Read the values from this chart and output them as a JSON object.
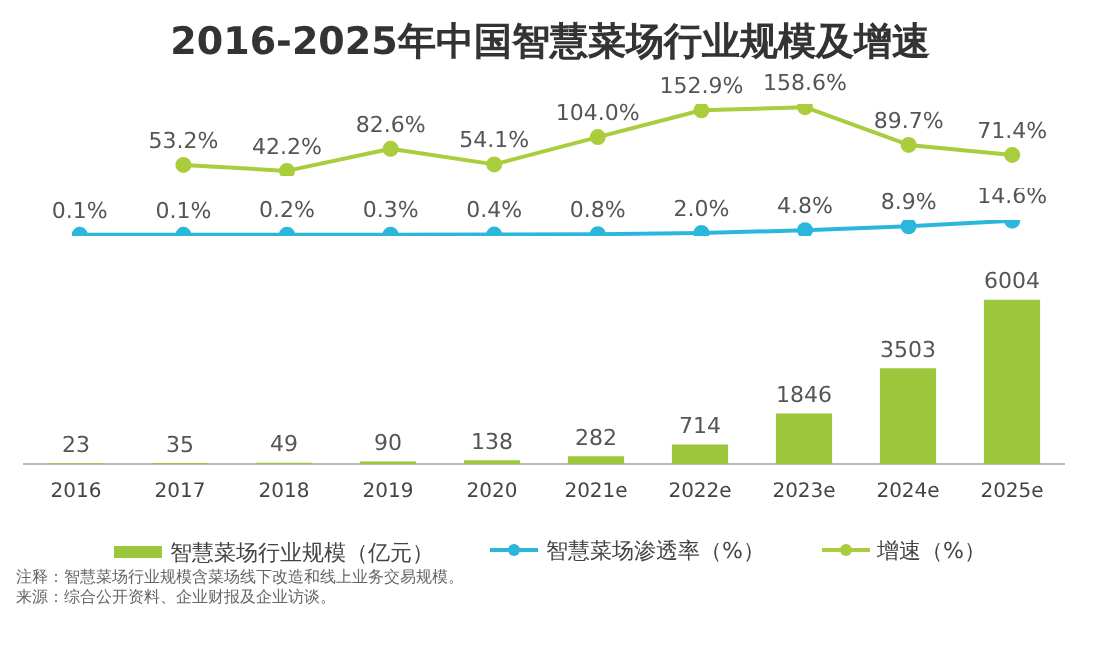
{
  "chart_data": [
    {
      "type": "line",
      "title": "2016-2025年中国智慧菜场行业规模及增速",
      "categories": [
        null,
        null,
        null,
        null,
        null,
        null,
        null,
        null,
        null,
        null
      ],
      "tick_labels": false,
      "grid": false,
      "legend": "bottom",
      "marker": "circle",
      "series": [
        {
          "name": "增速（%）",
          "color": "#a9cd3c",
          "values": [
            null,
            53.2,
            42.2,
            82.6,
            54.1,
            104.0,
            152.9,
            158.6,
            89.7,
            71.4
          ],
          "value_labels": [
            null,
            "53.2%",
            "42.2%",
            "82.6%",
            "54.1%",
            "104.0%",
            "152.9%",
            "158.6%",
            "89.7%",
            "71.4%"
          ]
        }
      ]
    },
    {
      "type": "line",
      "categories": [
        null,
        null,
        null,
        null,
        null,
        null,
        null,
        null,
        null,
        null
      ],
      "tick_labels": false,
      "grid": false,
      "legend": "bottom",
      "marker": "circle",
      "series": [
        {
          "name": "智慧菜场渗透率（%）",
          "color": "#2bb7dc",
          "values": [
            0.1,
            0.1,
            0.2,
            0.3,
            0.4,
            0.8,
            2.0,
            4.8,
            8.9,
            14.6
          ],
          "value_labels": [
            "0.1%",
            "0.1%",
            "0.2%",
            "0.3%",
            "0.4%",
            "0.8%",
            "2.0%",
            "4.8%",
            "8.9%",
            "14.6%"
          ]
        }
      ]
    },
    {
      "type": "bar",
      "categories": [
        "2016",
        "2017",
        "2018",
        "2019",
        "2020",
        "2021e",
        "2022e",
        "2023e",
        "2024e",
        "2025e"
      ],
      "tick_labels": "x",
      "grid": false,
      "legend": "bottom",
      "data_labels": true,
      "series": [
        {
          "name": "智慧菜场行业规模（亿元）",
          "color": "#9cc63b",
          "values": [
            23,
            35,
            49,
            90,
            138,
            282,
            714,
            1846,
            3503,
            6004
          ]
        }
      ],
      "annotations": [
        "注释：智慧菜场行业规模含菜场线下改造和线上业务交易规模。",
        "来源：综合公开资料、企业财报及企业访谈。"
      ]
    }
  ]
}
